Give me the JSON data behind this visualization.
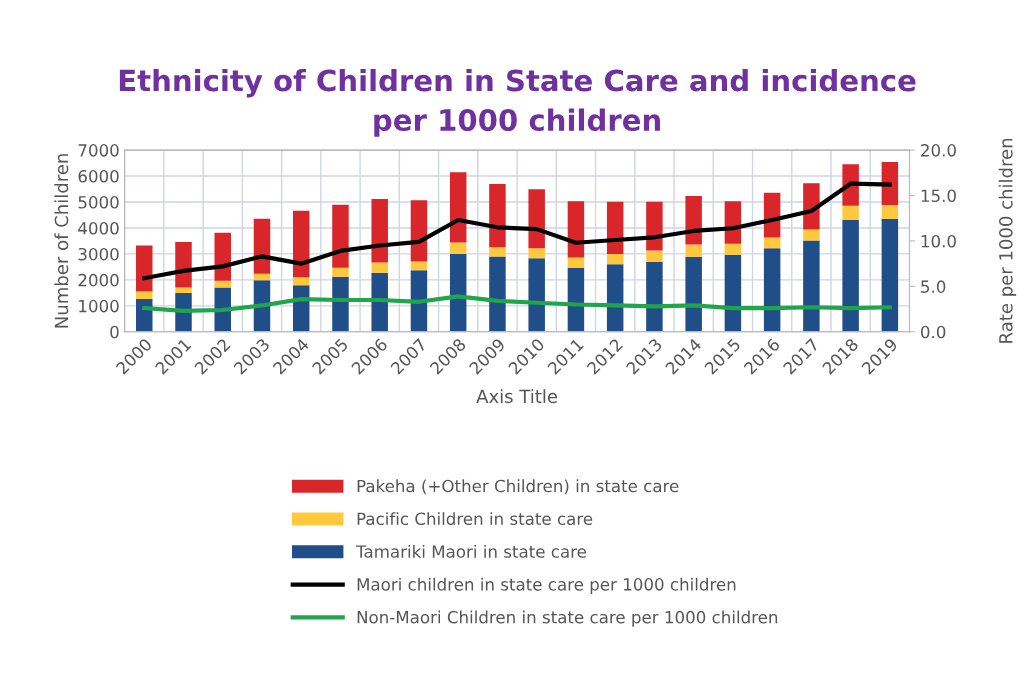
{
  "chart_data": {
    "type": "bar",
    "stacked": true,
    "title": "Ethnicity of Children in State Care and incidence\nper 1000 children",
    "xlabel": "Axis Title",
    "ylabel": "Number of Children",
    "y2label": "Rate per 1000 children",
    "categories": [
      "2000",
      "2001",
      "2002",
      "2003",
      "2004",
      "2005",
      "2006",
      "2007",
      "2008",
      "2009",
      "2010",
      "2011",
      "2012",
      "2013",
      "2014",
      "2015",
      "2016",
      "2017",
      "2018",
      "2019"
    ],
    "series": [
      {
        "name": "Tamariki Maori in state care",
        "color": "#1f4e89",
        "values": [
          1260,
          1490,
          1710,
          1990,
          1790,
          2120,
          2270,
          2370,
          3000,
          2900,
          2830,
          2470,
          2600,
          2690,
          2890,
          2970,
          3220,
          3520,
          4310,
          4350
        ]
      },
      {
        "name": "Pacific Children in state care",
        "color": "#ffc83d",
        "values": [
          290,
          220,
          260,
          250,
          310,
          350,
          400,
          340,
          440,
          360,
          390,
          390,
          400,
          440,
          470,
          420,
          410,
          420,
          550,
          530
        ]
      },
      {
        "name": "Pakeha (+Other Children) in state care",
        "color": "#d9262a",
        "values": [
          1770,
          1750,
          1850,
          2110,
          2560,
          2420,
          2450,
          2360,
          2710,
          2430,
          2270,
          2170,
          2010,
          1880,
          1870,
          1640,
          1730,
          1780,
          1590,
          1660
        ]
      },
      {
        "name": "Maori children in state care per 1000 children",
        "type": "line",
        "axis": "y2",
        "color": "#000000",
        "values": [
          5.9,
          6.7,
          7.2,
          8.3,
          7.5,
          8.9,
          9.5,
          9.9,
          12.3,
          11.5,
          11.3,
          9.8,
          10.1,
          10.4,
          11.1,
          11.4,
          12.3,
          13.3,
          16.3,
          16.2
        ]
      },
      {
        "name": "Non-Maori Children in state care per 1000 children",
        "type": "line",
        "axis": "y2",
        "color": "#1fa64a",
        "values": [
          2.6,
          2.3,
          2.4,
          2.9,
          3.6,
          3.5,
          3.5,
          3.3,
          3.9,
          3.4,
          3.2,
          3.0,
          2.9,
          2.8,
          2.9,
          2.6,
          2.6,
          2.7,
          2.6,
          2.7
        ]
      }
    ],
    "ylim": [
      0,
      7000
    ],
    "yticks": [
      0,
      1000,
      2000,
      3000,
      4000,
      5000,
      6000,
      7000
    ],
    "y2lim": [
      0,
      20
    ],
    "y2ticks": [
      {
        "value": 0,
        "label": "0.0"
      },
      {
        "value": 5,
        "label": "5.0"
      },
      {
        "value": 10,
        "label": "10.0"
      },
      {
        "value": 15,
        "label": "15.0"
      },
      {
        "value": 20,
        "label": "20.0"
      }
    ],
    "grid": true,
    "legend": "bottom",
    "marker": "none",
    "line_style": "solid"
  }
}
